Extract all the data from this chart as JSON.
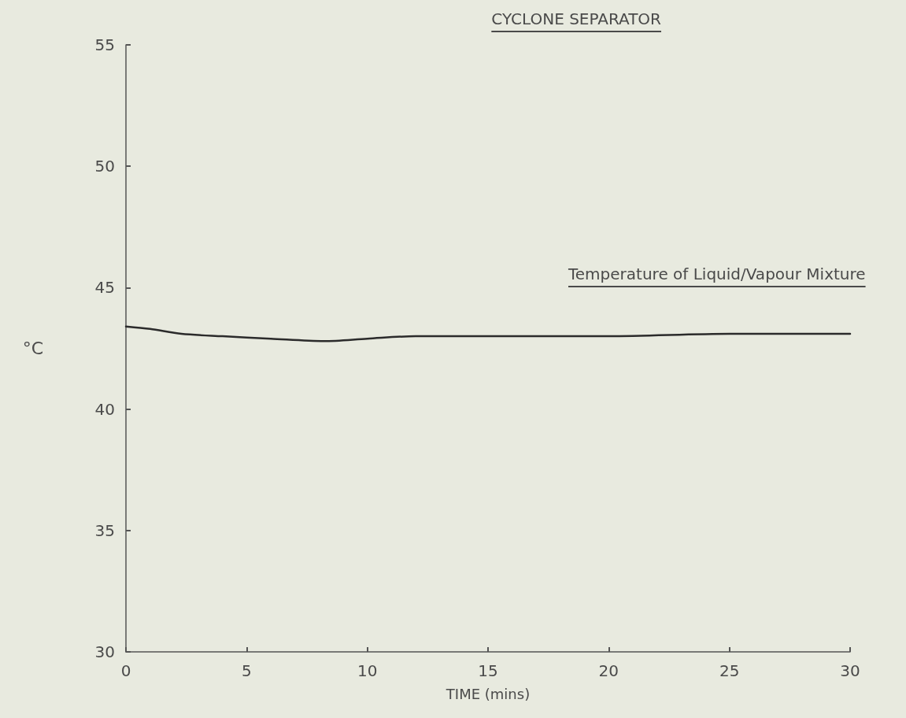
{
  "chart_data": {
    "type": "line",
    "title": "CYCLONE SEPARATOR",
    "xlabel": "TIME (mins)",
    "ylabel": "°C",
    "x": [
      0,
      1,
      2.3,
      4,
      6,
      8.2,
      10,
      12,
      14,
      16.3,
      20,
      25,
      30
    ],
    "series": [
      {
        "name": "Temperature of Liquid/Vapour Mixture",
        "color": "#2b2b2b",
        "values": [
          43.4,
          43.3,
          43.1,
          43.0,
          42.9,
          42.8,
          42.9,
          43.0,
          43.0,
          43.0,
          43.0,
          43.1,
          43.1
        ]
      }
    ],
    "xlim": [
      0,
      30
    ],
    "xticks": [
      0,
      5,
      10,
      15,
      20,
      25,
      30
    ],
    "ylim": [
      30,
      55
    ],
    "yticks": [
      30,
      35,
      40,
      45,
      50,
      55
    ],
    "grid": false,
    "legend": false,
    "marker": "none",
    "line_style": "solid"
  }
}
